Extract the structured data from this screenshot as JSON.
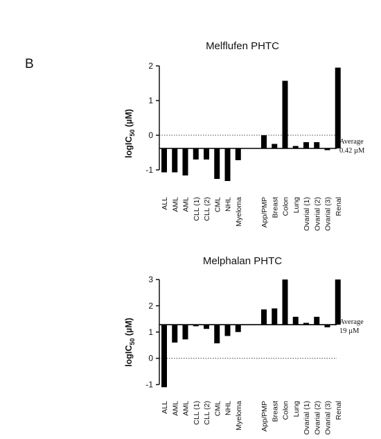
{
  "panel_label": "B",
  "chart_data": [
    {
      "type": "bar",
      "title": "Melflufen PHTC",
      "ylabel": "logIC",
      "ylabel_sub": "50",
      "ylabel_unit": " (µM)",
      "ylim": [
        -1.5,
        2.0
      ],
      "yticks": [
        -1,
        0,
        1,
        2
      ],
      "reference_line": {
        "value": 0,
        "style": "dotted"
      },
      "baseline": -0.38,
      "average_label": [
        "Average",
        "0.42 µM"
      ],
      "groups": [
        {
          "categories": [
            "ALL",
            "AML",
            "AML",
            "CLL (1)",
            "CLL (2)",
            "CML",
            "NHL",
            "Myeloma"
          ],
          "values": [
            -1.07,
            -1.07,
            -1.16,
            -0.7,
            -0.7,
            -1.26,
            -1.32,
            -0.72
          ]
        },
        {
          "categories": [
            "App/PMP",
            "Breast",
            "Colon",
            "Lung",
            "Ovarial (1)",
            "Ovarial (2)",
            "Ovarial (3)",
            "Renal"
          ],
          "values": [
            0.0,
            -0.25,
            1.57,
            -0.31,
            -0.2,
            -0.2,
            -0.43,
            1.95
          ]
        }
      ]
    },
    {
      "type": "bar",
      "title": "Melphalan PHTC",
      "ylabel": "logIC",
      "ylabel_sub": "50",
      "ylabel_unit": " (µM)",
      "ylim": [
        -1.25,
        3.0
      ],
      "yticks": [
        -1,
        0,
        1,
        2,
        3
      ],
      "reference_line": {
        "value": 0,
        "style": "dotted"
      },
      "baseline": 1.28,
      "average_label": [
        "Average",
        "19 µM"
      ],
      "groups": [
        {
          "categories": [
            "ALL",
            "AML",
            "AML",
            "CLL (1)",
            "CLL (2)",
            "CML",
            "NHL",
            "Myeloma"
          ],
          "values": [
            -1.1,
            0.6,
            0.72,
            1.22,
            1.12,
            0.57,
            0.85,
            1.0
          ]
        },
        {
          "categories": [
            "App/PMP",
            "Breast",
            "Colon",
            "Lung",
            "Ovarial (1)",
            "Ovarial (2)",
            "Ovarial (3)",
            "Renal"
          ],
          "values": [
            1.86,
            1.9,
            3.0,
            1.58,
            1.35,
            1.58,
            1.18,
            3.0
          ]
        }
      ]
    }
  ]
}
